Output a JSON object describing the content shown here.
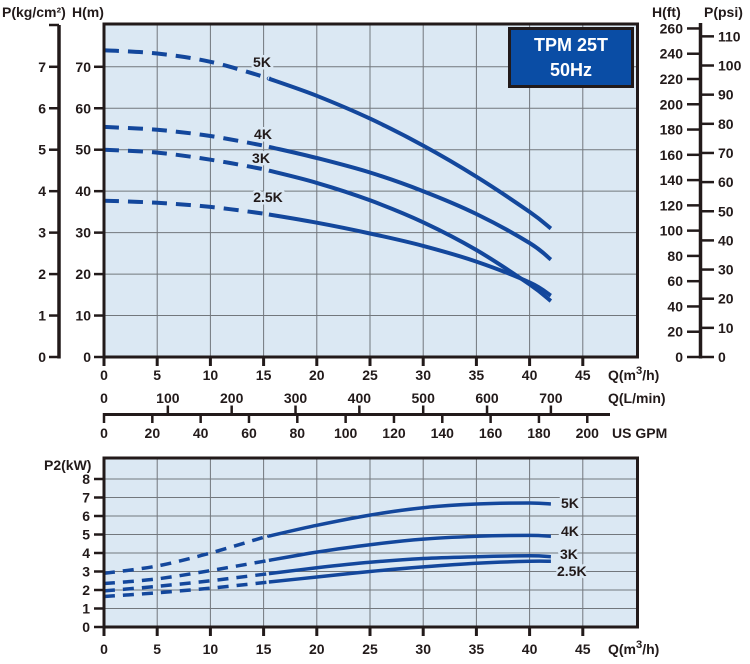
{
  "title_box": {
    "line1": "TPM 25T",
    "line2": "50Hz"
  },
  "colors": {
    "ink": "#221a1a",
    "grid": "#72777c",
    "plot_bg": "#dbe8f3",
    "curve": "#13479c",
    "title_bg": "#0a4da5",
    "page_bg": "#ffffff",
    "text_white": "#ffffff"
  },
  "chart_data": [
    {
      "id": "head-chart",
      "type": "line",
      "xlabel": "Q(m³/h)",
      "ylabel": "H(m)",
      "xlim": [
        0,
        50
      ],
      "ylim": [
        0,
        80
      ],
      "grid": true,
      "x_ticks_m3h": [
        0,
        5,
        10,
        15,
        20,
        25,
        30,
        35,
        40,
        45
      ],
      "y_ticks_m": [
        0,
        10,
        20,
        30,
        40,
        50,
        60,
        70
      ],
      "left_scale": {
        "label": "P(kg/cm²)",
        "ticks": [
          0,
          1,
          2,
          3,
          4,
          5,
          6,
          7
        ],
        "m_per_unit": 10
      },
      "right_scale_ft": {
        "label": "H(ft)",
        "ticks": [
          0,
          20,
          40,
          60,
          80,
          100,
          120,
          140,
          160,
          180,
          200,
          220,
          240,
          260
        ],
        "m_per_unit": 0.3048
      },
      "right_scale_psi": {
        "label": "P(psi)",
        "ticks": [
          0,
          10,
          20,
          30,
          40,
          50,
          60,
          70,
          80,
          90,
          100,
          110
        ],
        "m_per_unit": 0.7031
      },
      "x_scale_lmin": {
        "label": "Q(L/min)",
        "ticks": [
          0,
          100,
          200,
          300,
          400,
          500,
          600,
          700
        ],
        "m3h_per_unit": 0.06
      },
      "x_scale_gpm": {
        "label": "US GPM",
        "ticks": [
          0,
          20,
          40,
          60,
          80,
          100,
          120,
          140,
          160,
          180,
          200
        ],
        "m3h_per_unit": 0.2271
      },
      "dash_until_q": 15.5,
      "legend_position": "on-curve",
      "series": [
        {
          "name": "5K",
          "points": [
            [
              0,
              74
            ],
            [
              5,
              73.2
            ],
            [
              10,
              71.2
            ],
            [
              15,
              67.6
            ],
            [
              20,
              63
            ],
            [
              25,
              57.5
            ],
            [
              30,
              51
            ],
            [
              35,
              43.5
            ],
            [
              40,
              35
            ],
            [
              42,
              31
            ]
          ]
        },
        {
          "name": "4K",
          "points": [
            [
              0,
              55.5
            ],
            [
              5,
              54.8
            ],
            [
              10,
              53.3
            ],
            [
              15,
              51
            ],
            [
              20,
              48
            ],
            [
              25,
              44.5
            ],
            [
              30,
              40
            ],
            [
              35,
              34.5
            ],
            [
              40,
              27.5
            ],
            [
              42,
              23.5
            ]
          ]
        },
        {
          "name": "3K",
          "points": [
            [
              0,
              50
            ],
            [
              5,
              49.3
            ],
            [
              10,
              47.6
            ],
            [
              15,
              45.3
            ],
            [
              20,
              42
            ],
            [
              25,
              37.8
            ],
            [
              30,
              32.5
            ],
            [
              35,
              25.8
            ],
            [
              40,
              17.5
            ],
            [
              42,
              13.5
            ]
          ]
        },
        {
          "name": "2.5K",
          "points": [
            [
              0,
              37.7
            ],
            [
              5,
              37.2
            ],
            [
              10,
              36.2
            ],
            [
              15,
              34.6
            ],
            [
              20,
              32.4
            ],
            [
              25,
              29.8
            ],
            [
              30,
              26.8
            ],
            [
              35,
              23
            ],
            [
              40,
              18
            ],
            [
              42,
              14.8
            ]
          ]
        }
      ]
    },
    {
      "id": "power-chart",
      "type": "line",
      "xlabel": "Q(m³/h)",
      "ylabel": "P2(kW)",
      "xlim": [
        0,
        50
      ],
      "ylim": [
        0,
        9
      ],
      "grid": true,
      "x_ticks_m3h": [
        0,
        5,
        10,
        15,
        20,
        25,
        30,
        35,
        40,
        45
      ],
      "y_ticks_kw": [
        0,
        1,
        2,
        3,
        4,
        5,
        6,
        7,
        8
      ],
      "dash_until_q": 15.5,
      "legend_position": "on-curve",
      "series": [
        {
          "name": "5K",
          "points": [
            [
              0,
              2.9
            ],
            [
              5,
              3.3
            ],
            [
              10,
              4.0
            ],
            [
              15,
              4.85
            ],
            [
              20,
              5.5
            ],
            [
              25,
              6.05
            ],
            [
              30,
              6.45
            ],
            [
              35,
              6.65
            ],
            [
              40,
              6.7
            ],
            [
              42,
              6.65
            ]
          ]
        },
        {
          "name": "4K",
          "points": [
            [
              0,
              2.35
            ],
            [
              5,
              2.6
            ],
            [
              10,
              3.05
            ],
            [
              15,
              3.55
            ],
            [
              20,
              4.05
            ],
            [
              25,
              4.45
            ],
            [
              30,
              4.75
            ],
            [
              35,
              4.9
            ],
            [
              40,
              4.95
            ],
            [
              42,
              4.9
            ]
          ]
        },
        {
          "name": "3K",
          "points": [
            [
              0,
              1.95
            ],
            [
              5,
              2.2
            ],
            [
              10,
              2.5
            ],
            [
              15,
              2.85
            ],
            [
              20,
              3.2
            ],
            [
              25,
              3.5
            ],
            [
              30,
              3.7
            ],
            [
              35,
              3.8
            ],
            [
              40,
              3.85
            ],
            [
              42,
              3.8
            ]
          ]
        },
        {
          "name": "2.5K",
          "points": [
            [
              0,
              1.65
            ],
            [
              5,
              1.85
            ],
            [
              10,
              2.1
            ],
            [
              15,
              2.4
            ],
            [
              20,
              2.7
            ],
            [
              25,
              3.0
            ],
            [
              30,
              3.25
            ],
            [
              35,
              3.45
            ],
            [
              40,
              3.55
            ],
            [
              42,
              3.55
            ]
          ]
        }
      ]
    }
  ]
}
